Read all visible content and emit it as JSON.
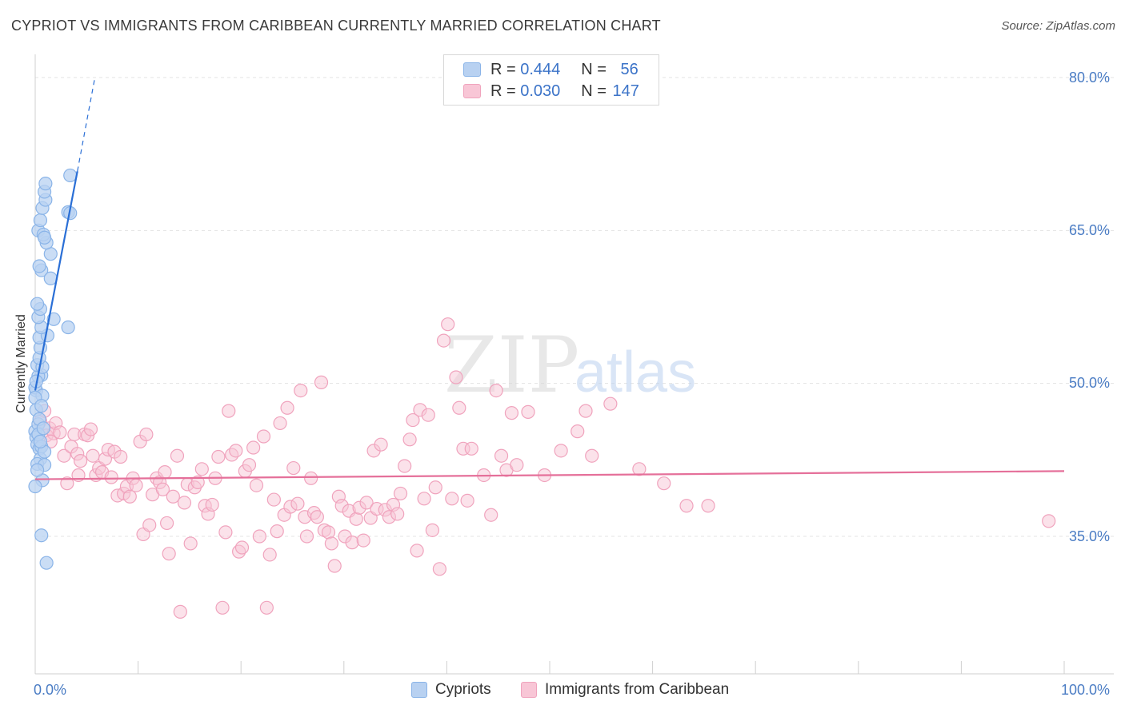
{
  "title": "CYPRIOT VS IMMIGRANTS FROM CARIBBEAN CURRENTLY MARRIED CORRELATION CHART",
  "source": "Source: ZipAtlas.com",
  "watermark": {
    "zip": "ZIP",
    "atlas": "atlas"
  },
  "legend": {
    "rows": [
      {
        "r_label": "R =",
        "r_value": "0.444",
        "n_label": "N =",
        "n_value": "56"
      },
      {
        "r_label": "R =",
        "r_value": "0.030",
        "n_label": "N =",
        "n_value": "147"
      }
    ]
  },
  "bottom_legend": {
    "series1": "Cypriots",
    "series2": "Immigrants from Caribbean"
  },
  "colors": {
    "blue": "#8ab4e8",
    "blue_line": "#2a6fd6",
    "pink": "#f0a3bd",
    "pink_line": "#e5709a",
    "tick_text": "#4a7cc4"
  },
  "chart_data": {
    "type": "scatter",
    "title": "CYPRIOT VS IMMIGRANTS FROM CARIBBEAN CURRENTLY MARRIED CORRELATION CHART",
    "xlabel": "",
    "ylabel": "Currently Married",
    "xlim": [
      0,
      100
    ],
    "ylim": [
      20,
      82
    ],
    "x_tick_labels": {
      "left": "0.0%",
      "right": "100.0%"
    },
    "y_ticks": [
      {
        "value": 80,
        "label": "80.0%"
      },
      {
        "value": 65,
        "label": "65.0%"
      },
      {
        "value": 50,
        "label": "50.0%"
      },
      {
        "value": 35,
        "label": "35.0%"
      }
    ],
    "series": [
      {
        "name": "Cypriots",
        "R": 0.444,
        "N": 56,
        "trend": {
          "x0": 0.0,
          "y0": 49.3,
          "x1": 4.1,
          "y1": 70.8,
          "dash_to_x": 5.8,
          "dash_to_y": 80.0
        },
        "points": [
          [
            0.0,
            45.3
          ],
          [
            0.1,
            44.7
          ],
          [
            0.3,
            46.0
          ],
          [
            0.2,
            44.0
          ],
          [
            0.4,
            43.6
          ],
          [
            0.6,
            43.8
          ],
          [
            0.5,
            42.6
          ],
          [
            0.2,
            42.1
          ],
          [
            0.9,
            42.0
          ],
          [
            0.7,
            40.5
          ],
          [
            0.0,
            39.9
          ],
          [
            0.6,
            35.1
          ],
          [
            1.1,
            32.4
          ],
          [
            0.1,
            49.3
          ],
          [
            0.0,
            49.6
          ],
          [
            0.7,
            48.8
          ],
          [
            0.6,
            50.8
          ],
          [
            0.3,
            50.7
          ],
          [
            0.2,
            51.8
          ],
          [
            0.7,
            51.6
          ],
          [
            0.4,
            52.5
          ],
          [
            0.5,
            53.5
          ],
          [
            0.4,
            54.5
          ],
          [
            1.2,
            54.7
          ],
          [
            0.6,
            55.5
          ],
          [
            1.8,
            56.3
          ],
          [
            3.2,
            55.5
          ],
          [
            0.3,
            56.5
          ],
          [
            0.5,
            57.3
          ],
          [
            0.2,
            57.8
          ],
          [
            0.6,
            61.1
          ],
          [
            0.4,
            61.5
          ],
          [
            1.5,
            60.3
          ],
          [
            1.5,
            62.7
          ],
          [
            1.1,
            63.8
          ],
          [
            0.3,
            65.0
          ],
          [
            0.8,
            64.6
          ],
          [
            0.9,
            64.3
          ],
          [
            0.5,
            66.0
          ],
          [
            0.7,
            67.2
          ],
          [
            1.0,
            68.0
          ],
          [
            0.9,
            68.8
          ],
          [
            1.0,
            69.6
          ],
          [
            3.2,
            66.8
          ],
          [
            3.4,
            66.7
          ],
          [
            3.4,
            70.4
          ],
          [
            0.0,
            48.6
          ],
          [
            0.1,
            47.4
          ],
          [
            0.3,
            45.0
          ],
          [
            0.9,
            43.3
          ],
          [
            0.5,
            44.3
          ],
          [
            0.2,
            41.5
          ],
          [
            0.4,
            46.5
          ],
          [
            0.1,
            50.2
          ],
          [
            0.8,
            45.6
          ],
          [
            0.6,
            47.8
          ]
        ]
      },
      {
        "name": "Immigrants from Caribbean",
        "R": 0.03,
        "N": 147,
        "trend": {
          "x0": 0.0,
          "y0": 40.6,
          "x1": 100.0,
          "y1": 41.4
        },
        "points": [
          [
            0.5,
            46.3
          ],
          [
            0.9,
            47.3
          ],
          [
            1.4,
            45.6
          ],
          [
            1.1,
            44.9
          ],
          [
            1.8,
            45.1
          ],
          [
            1.5,
            44.3
          ],
          [
            2.0,
            46.1
          ],
          [
            2.4,
            45.2
          ],
          [
            2.8,
            42.9
          ],
          [
            3.1,
            40.2
          ],
          [
            3.5,
            43.8
          ],
          [
            3.8,
            45.0
          ],
          [
            4.1,
            43.1
          ],
          [
            4.4,
            42.4
          ],
          [
            4.8,
            45.0
          ],
          [
            5.1,
            44.9
          ],
          [
            5.4,
            45.5
          ],
          [
            5.6,
            42.9
          ],
          [
            5.9,
            41.0
          ],
          [
            6.2,
            41.7
          ],
          [
            6.5,
            41.3
          ],
          [
            6.8,
            42.6
          ],
          [
            7.1,
            43.5
          ],
          [
            7.4,
            40.8
          ],
          [
            7.7,
            43.3
          ],
          [
            8.0,
            39.0
          ],
          [
            8.3,
            42.8
          ],
          [
            8.6,
            39.2
          ],
          [
            8.9,
            39.9
          ],
          [
            9.2,
            38.9
          ],
          [
            9.5,
            40.7
          ],
          [
            9.8,
            40.0
          ],
          [
            10.2,
            44.3
          ],
          [
            10.5,
            35.2
          ],
          [
            10.8,
            45.0
          ],
          [
            11.1,
            36.1
          ],
          [
            11.4,
            39.1
          ],
          [
            11.8,
            40.7
          ],
          [
            12.1,
            40.3
          ],
          [
            12.4,
            39.6
          ],
          [
            12.8,
            36.3
          ],
          [
            13.0,
            33.3
          ],
          [
            13.4,
            38.9
          ],
          [
            13.8,
            42.9
          ],
          [
            14.1,
            27.6
          ],
          [
            14.5,
            38.3
          ],
          [
            14.8,
            40.1
          ],
          [
            15.1,
            34.3
          ],
          [
            15.5,
            39.8
          ],
          [
            15.8,
            40.3
          ],
          [
            16.2,
            41.6
          ],
          [
            16.5,
            38.0
          ],
          [
            16.8,
            37.2
          ],
          [
            17.2,
            38.1
          ],
          [
            17.5,
            40.7
          ],
          [
            17.8,
            42.8
          ],
          [
            18.2,
            28.0
          ],
          [
            18.5,
            35.4
          ],
          [
            18.8,
            47.3
          ],
          [
            19.1,
            43.0
          ],
          [
            19.5,
            43.4
          ],
          [
            19.8,
            33.5
          ],
          [
            20.1,
            33.9
          ],
          [
            20.4,
            41.4
          ],
          [
            20.8,
            42.0
          ],
          [
            21.2,
            43.7
          ],
          [
            21.5,
            40.0
          ],
          [
            21.8,
            35.0
          ],
          [
            22.2,
            44.8
          ],
          [
            22.5,
            28.0
          ],
          [
            22.8,
            33.2
          ],
          [
            23.2,
            38.6
          ],
          [
            23.5,
            35.5
          ],
          [
            23.8,
            46.1
          ],
          [
            24.2,
            37.1
          ],
          [
            24.5,
            47.6
          ],
          [
            24.8,
            37.9
          ],
          [
            25.1,
            41.7
          ],
          [
            25.5,
            38.2
          ],
          [
            25.8,
            49.3
          ],
          [
            26.2,
            36.9
          ],
          [
            26.4,
            35.0
          ],
          [
            26.8,
            40.7
          ],
          [
            27.1,
            37.3
          ],
          [
            27.4,
            36.9
          ],
          [
            27.8,
            50.1
          ],
          [
            28.1,
            35.6
          ],
          [
            28.5,
            35.4
          ],
          [
            28.8,
            34.3
          ],
          [
            29.1,
            32.1
          ],
          [
            29.5,
            38.9
          ],
          [
            29.8,
            38.0
          ],
          [
            30.1,
            35.0
          ],
          [
            30.5,
            37.5
          ],
          [
            30.8,
            34.4
          ],
          [
            31.2,
            36.7
          ],
          [
            31.5,
            37.8
          ],
          [
            31.9,
            34.6
          ],
          [
            32.2,
            38.3
          ],
          [
            32.6,
            36.8
          ],
          [
            32.9,
            43.4
          ],
          [
            33.2,
            37.7
          ],
          [
            33.6,
            44.0
          ],
          [
            34.0,
            37.6
          ],
          [
            34.4,
            36.9
          ],
          [
            34.8,
            38.1
          ],
          [
            35.2,
            37.2
          ],
          [
            35.5,
            39.2
          ],
          [
            35.9,
            41.9
          ],
          [
            36.4,
            44.5
          ],
          [
            36.7,
            46.4
          ],
          [
            37.1,
            33.6
          ],
          [
            37.4,
            47.4
          ],
          [
            37.8,
            38.7
          ],
          [
            38.2,
            46.9
          ],
          [
            38.6,
            35.6
          ],
          [
            38.9,
            39.8
          ],
          [
            39.3,
            31.8
          ],
          [
            39.7,
            54.2
          ],
          [
            40.1,
            55.8
          ],
          [
            40.5,
            38.7
          ],
          [
            40.9,
            50.6
          ],
          [
            41.2,
            47.6
          ],
          [
            41.6,
            43.6
          ],
          [
            42.0,
            38.5
          ],
          [
            42.4,
            43.6
          ],
          [
            43.6,
            41.0
          ],
          [
            44.3,
            37.1
          ],
          [
            44.8,
            49.3
          ],
          [
            45.3,
            42.9
          ],
          [
            45.8,
            41.5
          ],
          [
            46.3,
            47.1
          ],
          [
            46.8,
            42.0
          ],
          [
            47.9,
            47.2
          ],
          [
            49.5,
            41.0
          ],
          [
            51.1,
            43.4
          ],
          [
            52.7,
            45.3
          ],
          [
            53.5,
            47.3
          ],
          [
            54.1,
            42.9
          ],
          [
            55.9,
            48.0
          ],
          [
            58.7,
            41.6
          ],
          [
            61.1,
            40.2
          ],
          [
            65.4,
            38.0
          ],
          [
            63.3,
            38.0
          ],
          [
            98.5,
            36.5
          ],
          [
            4.2,
            41.0
          ],
          [
            12.6,
            41.3
          ]
        ]
      }
    ]
  }
}
